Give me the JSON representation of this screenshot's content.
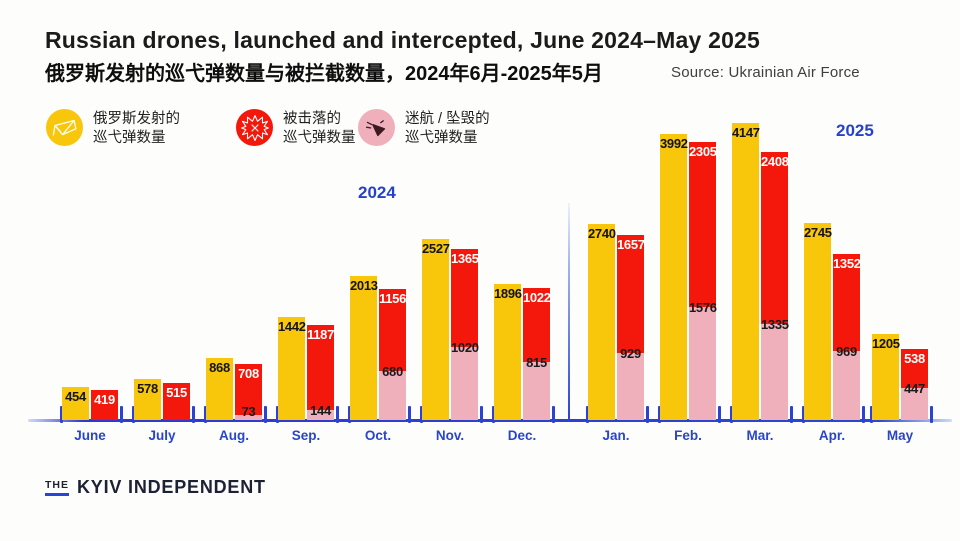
{
  "header": {
    "title": "Russian drones, launched and intercepted, June 2024–May 2025",
    "subtitle_zh": "俄罗斯发射的巡弋弹数量与被拦截数量，2024年6月-2025年5月",
    "source": "Source: Ukrainian Air Force"
  },
  "legend": {
    "items": [
      {
        "icon": "launched-drone-icon",
        "circle_color": "#F8C60A",
        "lines": [
          "俄罗斯发射的",
          "巡弋弹数量"
        ]
      },
      {
        "icon": "explosion-icon",
        "circle_color": "#F3180B",
        "lines": [
          "被击落的",
          "巡弋弹数量"
        ]
      },
      {
        "icon": "crashed-drone-icon",
        "circle_color": "#EFB0BC",
        "lines": [
          "迷航 / 坠毁的",
          "巡弋弹数量"
        ]
      }
    ]
  },
  "chart_data": {
    "type": "bar",
    "title": "Russian drones, launched and intercepted, June 2024–May 2025",
    "categories": [
      "June",
      "July",
      "Aug.",
      "Sep.",
      "Oct.",
      "Nov.",
      "Dec.",
      "Jan.",
      "Feb.",
      "Mar.",
      "Apr.",
      "May"
    ],
    "series": [
      {
        "name": "launched",
        "label_zh": "俄罗斯发射的巡弋弹数量",
        "color": "#F8C60A",
        "value_label_color": "#141414",
        "values": [
          454,
          578,
          868,
          1442,
          2013,
          2527,
          1896,
          2740,
          3992,
          4147,
          2745,
          1205
        ]
      },
      {
        "name": "shot_down",
        "label_zh": "被击落的巡弋弹数量",
        "color": "#F3180B",
        "value_label_color": "#ffffff",
        "values": [
          419,
          515,
          708,
          1187,
          1156,
          1365,
          1022,
          1657,
          2305,
          2408,
          1352,
          538
        ]
      },
      {
        "name": "lost_or_crashed",
        "label_zh": "迷航 / 坠毁的巡弋弹数量",
        "color": "#EFB0BC",
        "value_label_color": "#1a1a1a",
        "values": [
          null,
          null,
          73,
          144,
          680,
          1020,
          815,
          929,
          1576,
          1335,
          969,
          447
        ]
      }
    ],
    "stacking": "shot_down is stacked on top of lost_or_crashed in the right bar of each pair; launched is the separate left bar",
    "year_labels": [
      "2024",
      "2025"
    ],
    "ylim": [
      0,
      4147
    ],
    "grid": false,
    "axis_color": "#2B42D4",
    "category_label_color": "#2946C8"
  },
  "footer": {
    "logo_the": "THE",
    "logo_name": "KYIV INDEPENDENT"
  }
}
